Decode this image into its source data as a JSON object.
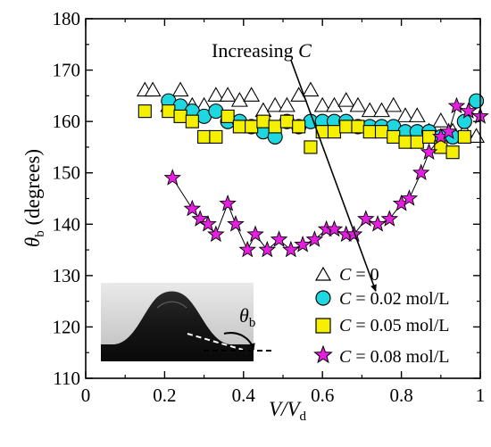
{
  "chart_data": {
    "type": "scatter",
    "xlabel": {
      "main": "V/V",
      "sub": "d"
    },
    "ylabel": {
      "main": "θ",
      "sub": "b",
      "rest": " (degrees)"
    },
    "xlim": [
      0,
      1
    ],
    "ylim": [
      110,
      180
    ],
    "x_ticks": [
      0,
      0.2,
      0.4,
      0.6,
      0.8,
      1
    ],
    "x_tick_labels": [
      "0",
      "0.2",
      "0.4",
      "0.6",
      "0.8",
      "1"
    ],
    "y_ticks": [
      110,
      120,
      130,
      140,
      150,
      160,
      170,
      180
    ],
    "y_tick_labels": [
      "110",
      "120",
      "130",
      "140",
      "150",
      "160",
      "170",
      "180"
    ],
    "grid": false,
    "legend_position": "bottom-right",
    "annotation": {
      "text": "Increasing ",
      "var": "C",
      "arrow_from": [
        0.52,
        172
      ],
      "arrow_to": [
        0.735,
        127
      ]
    },
    "inset_label": {
      "main": "θ",
      "sub": "b"
    },
    "series": [
      {
        "name": "C = 0",
        "legend": {
          "var": "C",
          "rest": " = 0"
        },
        "marker": "triangle",
        "color": "#ffffff",
        "x": [
          0.15,
          0.17,
          0.21,
          0.24,
          0.27,
          0.3,
          0.33,
          0.36,
          0.39,
          0.42,
          0.45,
          0.48,
          0.51,
          0.54,
          0.57,
          0.6,
          0.63,
          0.66,
          0.69,
          0.72,
          0.75,
          0.78,
          0.81,
          0.84,
          0.87,
          0.9,
          0.93,
          0.96,
          0.99
        ],
        "y": [
          166,
          166,
          163,
          166,
          163,
          163,
          165,
          165,
          164,
          165,
          162,
          163,
          163,
          165,
          166,
          163,
          163,
          164,
          163,
          162,
          162,
          163,
          161,
          161,
          158,
          160,
          158,
          158,
          157
        ]
      },
      {
        "name": "C = 0.02 mol/L",
        "legend": {
          "var": "C",
          "rest": " = 0.02 mol/L"
        },
        "marker": "circle",
        "color": "#1fd7e0",
        "x": [
          0.21,
          0.24,
          0.27,
          0.3,
          0.33,
          0.36,
          0.39,
          0.42,
          0.45,
          0.48,
          0.51,
          0.54,
          0.57,
          0.6,
          0.63,
          0.66,
          0.69,
          0.72,
          0.75,
          0.78,
          0.81,
          0.84,
          0.87,
          0.9,
          0.93,
          0.96,
          0.99
        ],
        "y": [
          164,
          163,
          162,
          161,
          162,
          160,
          160,
          159,
          158,
          157,
          160,
          159,
          160,
          160,
          160,
          160,
          159,
          159,
          159,
          159,
          158,
          158,
          158,
          157,
          157,
          160,
          164
        ]
      },
      {
        "name": "C = 0.05 mol/L",
        "legend": {
          "var": "C",
          "rest": " = 0.05 mol/L"
        },
        "marker": "square",
        "color": "#f5f000",
        "x": [
          0.15,
          0.21,
          0.24,
          0.27,
          0.3,
          0.33,
          0.36,
          0.39,
          0.42,
          0.45,
          0.48,
          0.51,
          0.54,
          0.57,
          0.6,
          0.63,
          0.66,
          0.69,
          0.72,
          0.75,
          0.78,
          0.81,
          0.84,
          0.87,
          0.9,
          0.93,
          0.96
        ],
        "y": [
          162,
          162,
          161,
          160,
          157,
          157,
          161,
          159,
          159,
          160,
          159,
          160,
          159,
          155,
          158,
          158,
          159,
          159,
          158,
          158,
          157,
          156,
          156,
          157,
          155,
          154,
          157
        ]
      },
      {
        "name": "C = 0.08 mol/L",
        "legend": {
          "var": "C",
          "rest": " = 0.08 mol/L"
        },
        "marker": "star",
        "color": "#e51ee0",
        "x": [
          0.22,
          0.27,
          0.29,
          0.31,
          0.33,
          0.36,
          0.38,
          0.41,
          0.43,
          0.46,
          0.49,
          0.52,
          0.55,
          0.58,
          0.61,
          0.63,
          0.66,
          0.68,
          0.71,
          0.74,
          0.77,
          0.8,
          0.82,
          0.85,
          0.87,
          0.9,
          0.92,
          0.94,
          0.97,
          1.0
        ],
        "y": [
          149,
          143,
          141,
          140,
          138,
          144,
          140,
          135,
          138,
          135,
          137,
          135,
          136,
          137,
          139,
          139,
          138,
          138,
          141,
          140,
          141,
          144,
          145,
          150,
          154,
          157,
          158,
          163,
          162,
          161
        ]
      }
    ]
  }
}
